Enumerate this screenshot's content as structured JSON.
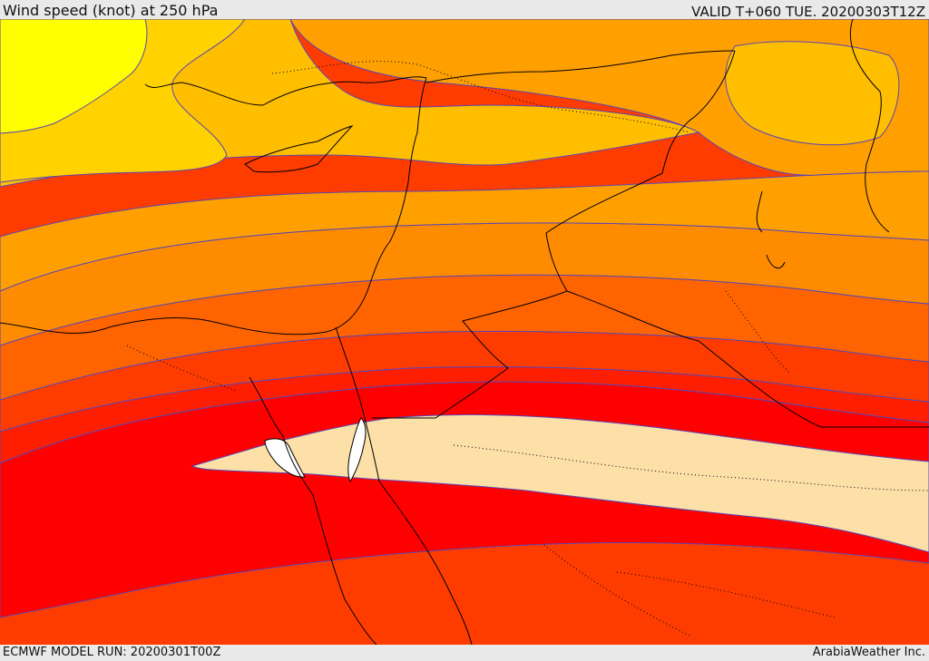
{
  "header": {
    "title": "Wind speed (knot) at 250 hPa",
    "valid_time": "VALID T+060 TUE. 20200303T12Z"
  },
  "footer": {
    "model_run": "ECMWF MODEL RUN: 20200301T00Z",
    "credit": "ArabiaWeather Inc."
  },
  "map": {
    "band_colors": [
      "#ffff00",
      "#ffd200",
      "#ffbe00",
      "#ffa000",
      "#ff8c00",
      "#ff6400",
      "#ff3c00",
      "#ff1e00",
      "#ff0000",
      "#fde0a8",
      "#ffffff"
    ],
    "contour_color": "#5a46b4",
    "coastline_color": "#000000"
  }
}
